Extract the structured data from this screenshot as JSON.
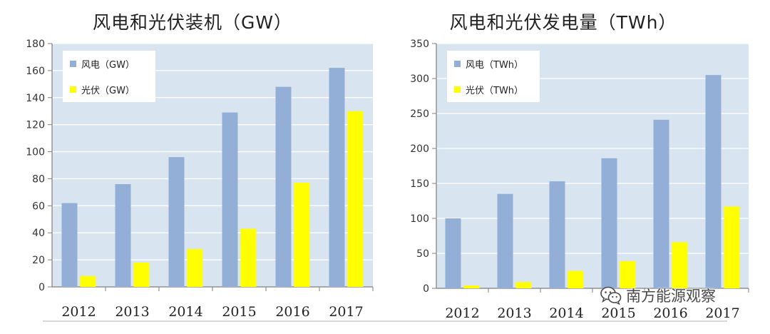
{
  "chart_data": [
    {
      "type": "bar",
      "title": "风电和光伏装机（GW）",
      "categories": [
        "2012",
        "2013",
        "2014",
        "2015",
        "2016",
        "2017"
      ],
      "series": [
        {
          "name": "风电（GW）",
          "color": "#94afd7",
          "values": [
            62,
            76,
            96,
            129,
            148,
            162
          ]
        },
        {
          "name": "光伏（GW）",
          "color": "#ffff00",
          "values": [
            8,
            18,
            28,
            43,
            77,
            130
          ]
        }
      ],
      "ylim": [
        0,
        180
      ],
      "yticks": [
        0,
        20,
        40,
        60,
        80,
        100,
        120,
        140,
        160,
        180
      ],
      "xlabel": "",
      "ylabel": "",
      "legend": "top-left",
      "grid": true,
      "plot_background": "#d9e4f1"
    },
    {
      "type": "bar",
      "title": "风电和光伏发电量（TWh）",
      "categories": [
        "2012",
        "2013",
        "2014",
        "2015",
        "2016",
        "2017"
      ],
      "series": [
        {
          "name": "风电（TWh）",
          "color": "#94afd7",
          "values": [
            100,
            135,
            153,
            186,
            241,
            305
          ]
        },
        {
          "name": "光伏（TWh）",
          "color": "#ffff00",
          "values": [
            4,
            9,
            25,
            39,
            66,
            117
          ]
        }
      ],
      "ylim": [
        0,
        350
      ],
      "yticks": [
        0,
        50,
        100,
        150,
        200,
        250,
        300,
        350
      ],
      "xlabel": "",
      "ylabel": "",
      "legend": "top-left",
      "grid": true,
      "plot_background": "#d9e4f1"
    }
  ],
  "watermark": {
    "text": "南方能源观察",
    "icon": "wechat-icon"
  }
}
